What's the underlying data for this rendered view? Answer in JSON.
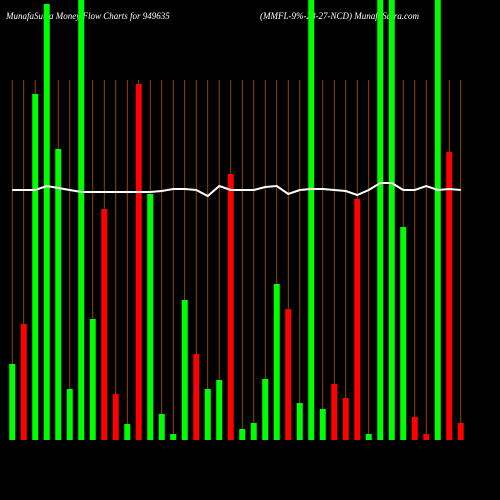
{
  "chart_data": {
    "type": "bar",
    "title": "MunafaSutra  Money  Flow  Charts for 949635",
    "subtitle": "(MMFL-9%-28-27-NCD) MunafaSutra.com",
    "categories": [
      null,
      null,
      null,
      null,
      null,
      null,
      null,
      null,
      null,
      null,
      null,
      null,
      null,
      null,
      null,
      null,
      null,
      null,
      null,
      null,
      null,
      null,
      null,
      null,
      null,
      null,
      null,
      null,
      null,
      null,
      null,
      null,
      null,
      null,
      null,
      null,
      null,
      null,
      null,
      null
    ],
    "values": [
      76,
      116,
      346,
      436,
      291,
      51,
      460,
      121,
      231,
      46,
      16,
      356,
      246,
      26,
      6,
      140,
      86,
      51,
      60,
      266,
      11,
      17,
      61,
      156,
      131,
      37,
      460,
      31,
      56,
      42,
      241,
      6,
      460,
      460,
      213,
      23,
      6,
      460,
      288,
      17
    ],
    "colors": [
      "#00ff00",
      "#ff0000",
      "#00ff00",
      "#00ff00",
      "#00ff00",
      "#00ff00",
      "#00ff00",
      "#00ff00",
      "#ff0000",
      "#ff0000",
      "#00ff00",
      "#ff0000",
      "#00ff00",
      "#00ff00",
      "#00ff00",
      "#00ff00",
      "#ff0000",
      "#00ff00",
      "#00ff00",
      "#ff0000",
      "#00ff00",
      "#00ff00",
      "#00ff00",
      "#00ff00",
      "#ff0000",
      "#00ff00",
      "#00ff00",
      "#00ff00",
      "#ff0000",
      "#ff0000",
      "#ff0000",
      "#00ff00",
      "#00ff00",
      "#00ff00",
      "#00ff00",
      "#ff0000",
      "#ff0000",
      "#00ff00",
      "#ff0000",
      "#ff0000"
    ],
    "line": {
      "color": "#ffffff",
      "values": [
        250,
        250,
        250,
        254,
        252,
        250,
        248,
        248,
        248,
        248,
        248,
        248,
        248,
        249,
        251,
        251,
        250,
        244,
        254,
        250,
        250,
        250,
        253,
        254,
        246,
        250,
        251,
        251,
        250,
        249,
        245,
        250,
        257,
        257,
        250,
        250,
        254,
        250,
        251,
        250
      ]
    },
    "ylim": [
      0,
      440
    ]
  }
}
